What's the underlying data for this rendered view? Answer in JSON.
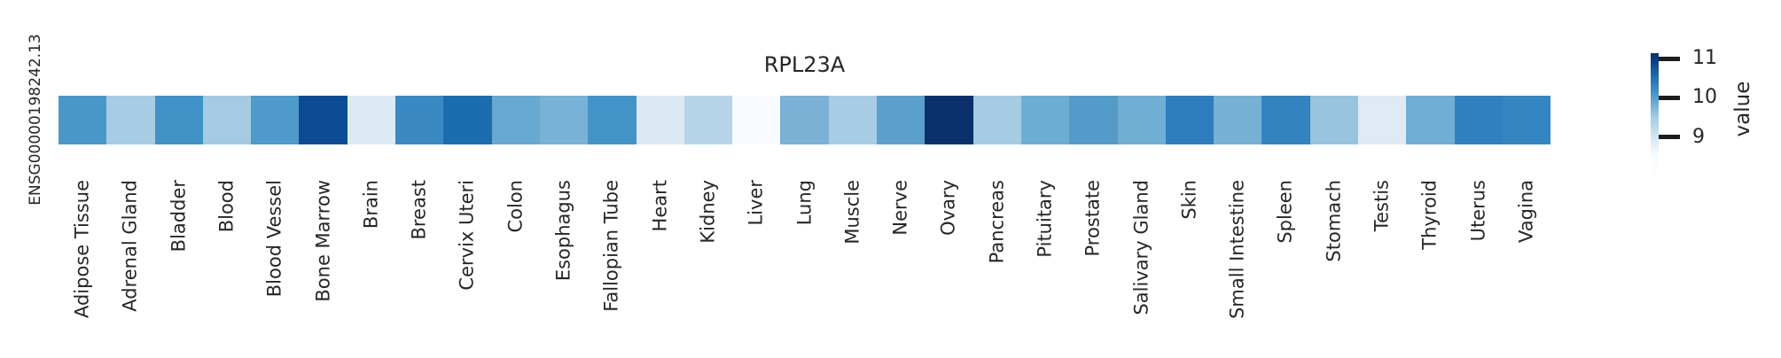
{
  "title": "RPL23A",
  "row_label": "ENSG00000198242.13",
  "colors": {
    "background": "#ffffff",
    "text": "#262626",
    "tick_mark": "#1c1c1c"
  },
  "chart_data": {
    "type": "heatmap",
    "title": "RPL23A",
    "rows": [
      "ENSG00000198242.13"
    ],
    "categories": [
      "Adipose Tissue",
      "Adrenal Gland",
      "Bladder",
      "Blood",
      "Blood Vessel",
      "Bone Marrow",
      "Brain",
      "Breast",
      "Cervix Uteri",
      "Colon",
      "Esophagus",
      "Fallopian Tube",
      "Heart",
      "Kidney",
      "Liver",
      "Lung",
      "Muscle",
      "Nerve",
      "Ovary",
      "Pancreas",
      "Pituitary",
      "Prostate",
      "Salivary Gland",
      "Skin",
      "Small Intestine",
      "Spleen",
      "Stomach",
      "Testis",
      "Thyroid",
      "Uterus",
      "Vagina"
    ],
    "series": [
      {
        "name": "ENSG00000198242.13",
        "values": [
          10.0,
          9.55,
          10.1,
          9.55,
          10.0,
          10.75,
          9.0,
          10.2,
          10.4,
          9.9,
          9.8,
          10.1,
          9.0,
          9.45,
          8.6,
          9.8,
          9.5,
          9.95,
          11.1,
          9.55,
          9.85,
          10.0,
          9.85,
          10.35,
          9.8,
          10.3,
          9.65,
          9.05,
          9.85,
          10.35,
          10.3
        ]
      }
    ],
    "cell_colors_hex": [
      "#4a97c9",
      "#a7cce3",
      "#4193c7",
      "#a4cbe2",
      "#4f9acb",
      "#0b4c94",
      "#dde9f5",
      "#3a89c2",
      "#1b6db0",
      "#67a9d1",
      "#79b2d6",
      "#4293c7",
      "#dce8f4",
      "#b5d4e8",
      "#f7fafe",
      "#7ab1d5",
      "#a9cde4",
      "#5ba0cd",
      "#0a316b",
      "#a6cbe3",
      "#6eadd3",
      "#549bca",
      "#71aed4",
      "#2e7ebd",
      "#77b0d5",
      "#3383bf",
      "#97c4df",
      "#dfeaf5",
      "#71add4",
      "#3080bf",
      "#3585c1"
    ],
    "colormap": "Blues",
    "grid": false,
    "legend_position": "right-colorbar",
    "colorbar": {
      "label": "value",
      "ticks": [
        11,
        10,
        9
      ],
      "value_range_shown": [
        8.55,
        11.14
      ],
      "extend": "min",
      "position": "right",
      "gradient_stops": [
        {
          "pos": 0,
          "color": "#0a336e"
        },
        {
          "pos": 4,
          "color": "#083a7a"
        },
        {
          "pos": 17,
          "color": "#1c6ab0"
        },
        {
          "pos": 33.3,
          "color": "#549fcd"
        },
        {
          "pos": 47,
          "color": "#9fcbe1"
        },
        {
          "pos": 62.6,
          "color": "#d4e4f4"
        },
        {
          "pos": 75.8,
          "color": "#f7fbff"
        },
        {
          "pos": 100,
          "color": "#ffffff"
        }
      ]
    }
  }
}
